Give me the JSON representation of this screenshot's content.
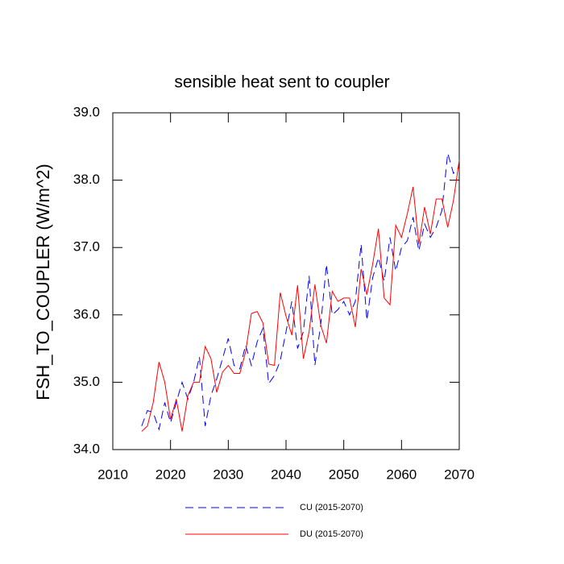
{
  "chart_data": {
    "type": "line",
    "title": "sensible heat sent to coupler",
    "y_label": "FSH_TO_COUPLER  (W/m^2)",
    "x": [
      2015,
      2016,
      2017,
      2018,
      2019,
      2020,
      2021,
      2022,
      2023,
      2024,
      2025,
      2026,
      2027,
      2028,
      2029,
      2030,
      2031,
      2032,
      2033,
      2034,
      2035,
      2036,
      2037,
      2038,
      2039,
      2040,
      2041,
      2042,
      2043,
      2044,
      2045,
      2046,
      2047,
      2048,
      2049,
      2050,
      2051,
      2052,
      2053,
      2054,
      2055,
      2056,
      2057,
      2058,
      2059,
      2060,
      2061,
      2062,
      2063,
      2064,
      2065,
      2066,
      2067,
      2068,
      2069,
      2070
    ],
    "series": [
      {
        "name": "CU (2015-2070)",
        "color": "#0000ff",
        "dash": true,
        "values": [
          34.35,
          34.58,
          34.55,
          34.3,
          34.7,
          34.4,
          34.7,
          35.0,
          34.75,
          35.0,
          35.38,
          34.35,
          34.8,
          35.05,
          35.35,
          35.65,
          35.25,
          35.2,
          35.55,
          35.25,
          35.6,
          35.8,
          34.98,
          35.1,
          35.32,
          35.75,
          36.2,
          35.5,
          35.75,
          36.58,
          35.25,
          35.85,
          36.75,
          36.0,
          36.08,
          36.2,
          36.0,
          36.2,
          37.05,
          35.92,
          36.55,
          36.85,
          36.5,
          37.15,
          36.65,
          37.0,
          37.1,
          37.45,
          36.95,
          37.35,
          37.15,
          37.3,
          37.55,
          38.4,
          38.1,
          38.2
        ]
      },
      {
        "name": "DU (2015-2070)",
        "color": "#ff0000",
        "dash": false,
        "values": [
          34.27,
          34.35,
          34.7,
          35.3,
          35.0,
          34.45,
          34.75,
          34.27,
          34.8,
          35.0,
          35.0,
          35.53,
          35.35,
          34.85,
          35.15,
          35.25,
          35.13,
          35.13,
          35.45,
          36.02,
          36.05,
          35.88,
          35.27,
          35.25,
          36.33,
          35.98,
          35.7,
          36.44,
          35.35,
          35.75,
          36.45,
          35.85,
          35.58,
          36.35,
          36.2,
          36.25,
          36.25,
          35.82,
          36.68,
          36.3,
          36.75,
          37.28,
          36.25,
          36.15,
          37.33,
          37.15,
          37.5,
          37.9,
          37.05,
          37.6,
          37.2,
          37.72,
          37.72,
          37.3,
          37.7,
          38.3
        ]
      }
    ],
    "xlim": [
      2010,
      2070
    ],
    "xticks": [
      2010,
      2020,
      2030,
      2040,
      2050,
      2060,
      2070
    ],
    "ylim": [
      34,
      39
    ],
    "yticks": [
      {
        "value": 34,
        "label": "34.0"
      },
      {
        "value": 35,
        "label": "35.0"
      },
      {
        "value": 36,
        "label": "36.0"
      },
      {
        "value": 37,
        "label": "37.0"
      },
      {
        "value": 38,
        "label": "38.0"
      },
      {
        "value": 39,
        "label": "39.0"
      }
    ],
    "grid": false,
    "legend": "bottom"
  }
}
